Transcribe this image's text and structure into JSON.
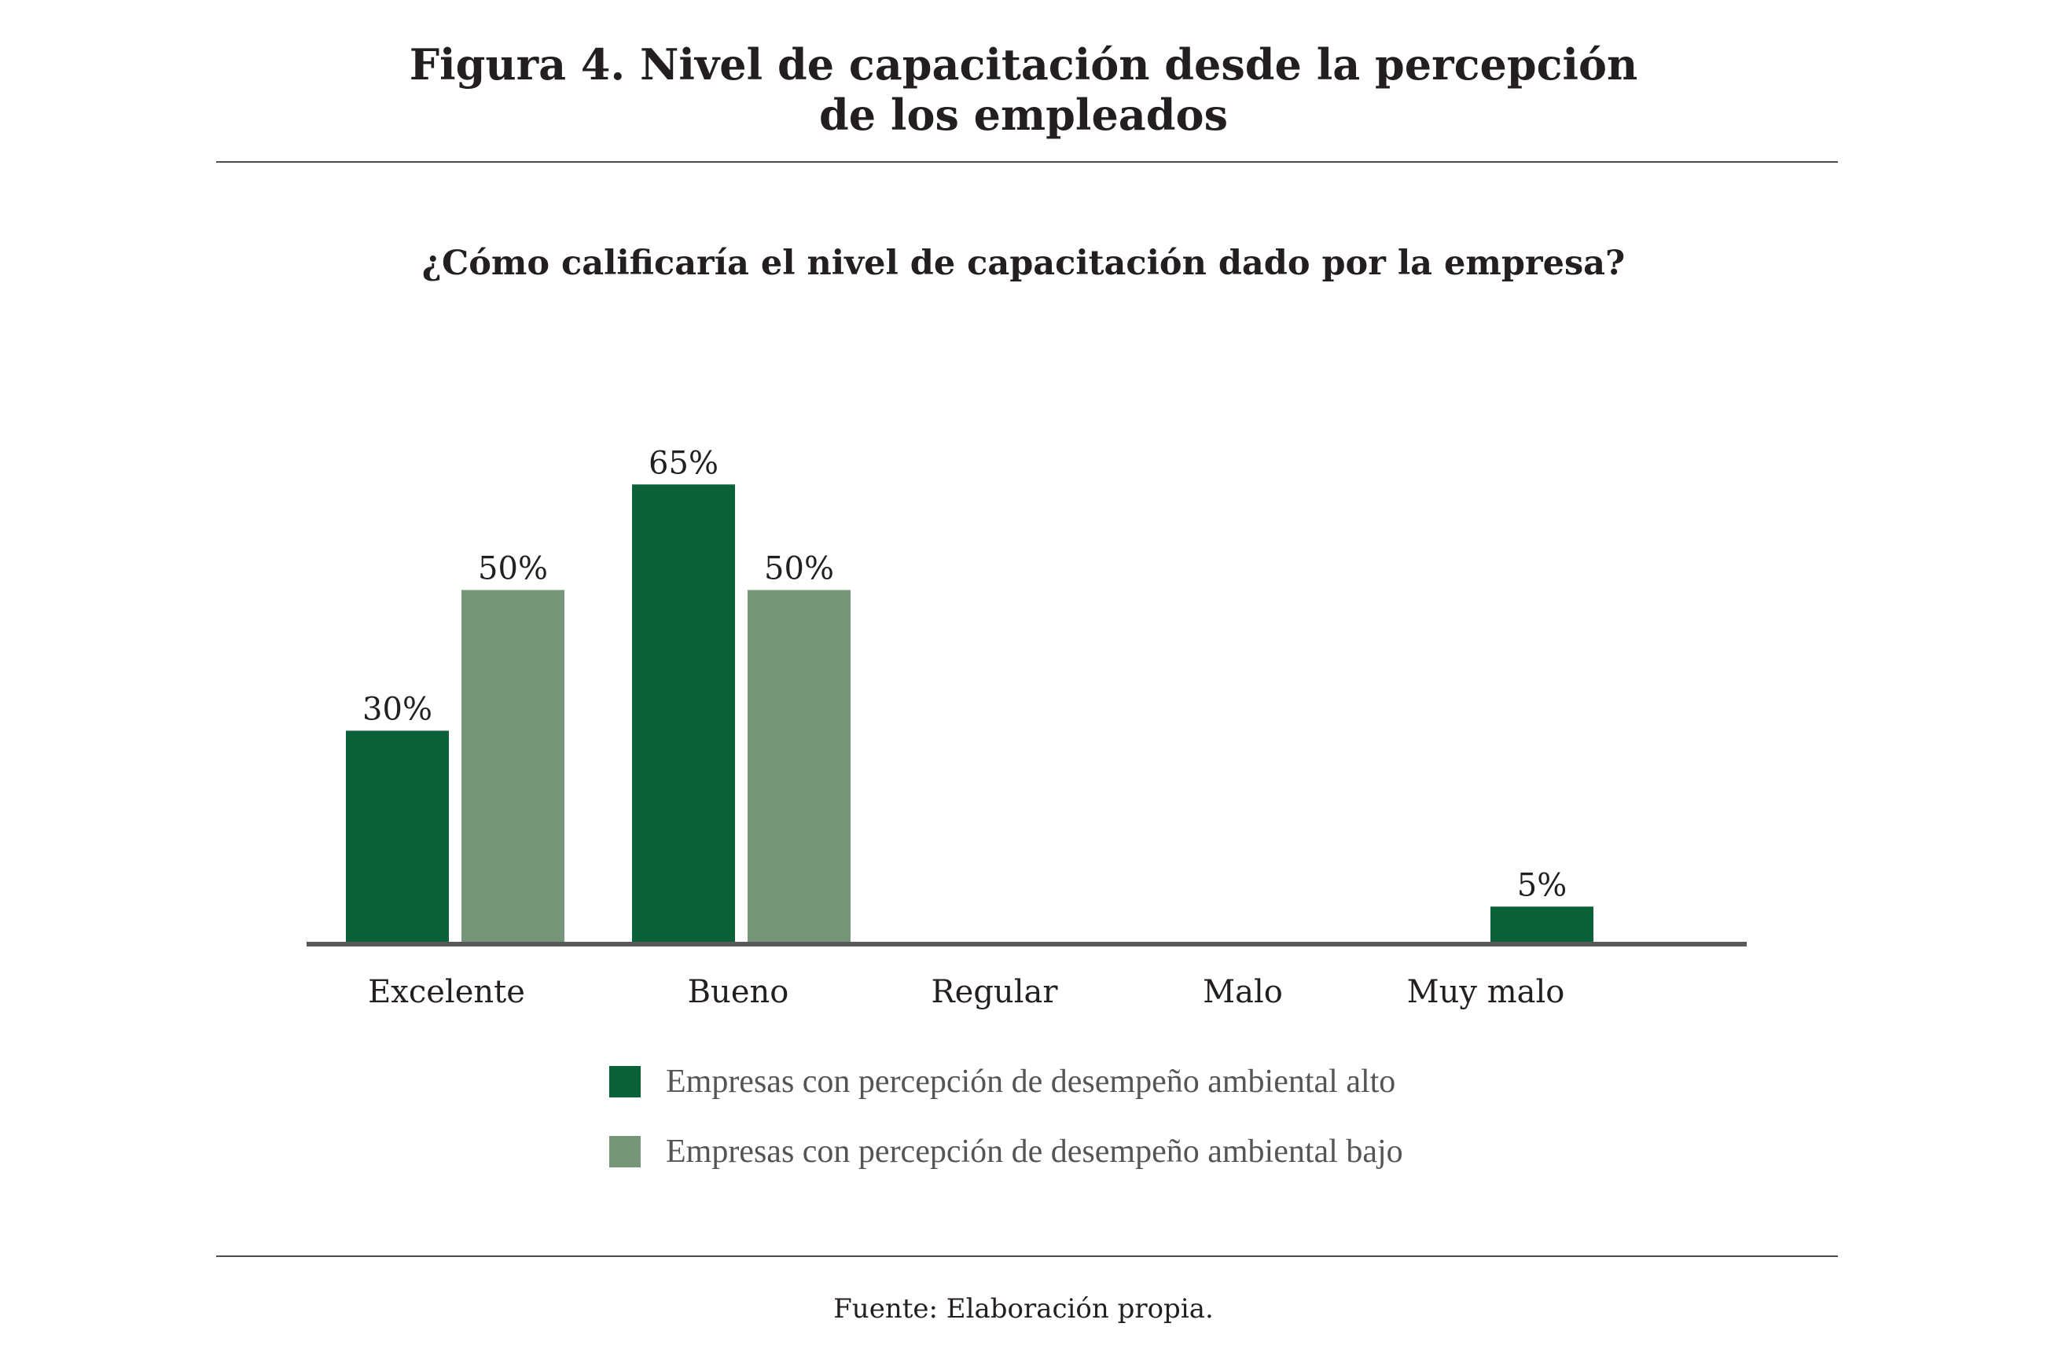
{
  "figure": {
    "title_line1": "Figura 4. Nivel de capacitación desde la percepción",
    "title_line2": "de los empleados",
    "source": "Fuente: Elaboración propia."
  },
  "chart_data": {
    "type": "bar",
    "title": "¿Cómo calificaría el nivel de capacitación dado por la empresa?",
    "xlabel": "",
    "ylabel": "",
    "categories": [
      "Excelente",
      "Bueno",
      "Regular",
      "Malo",
      "Muy malo"
    ],
    "series": [
      {
        "name": "Empresas con percepción de desempeño ambiental alto",
        "color": "#0b6138",
        "values": [
          30,
          65,
          0,
          0,
          5
        ],
        "labels": [
          "30%",
          "65%",
          "",
          "",
          "5%"
        ]
      },
      {
        "name": "Empresas con percepción de desempeño ambiental bajo",
        "color": "#769679",
        "values": [
          50,
          50,
          0,
          0,
          0
        ],
        "labels": [
          "50%",
          "50%",
          "",
          "",
          ""
        ]
      }
    ],
    "ylim": [
      0,
      70
    ],
    "grid": false,
    "legend_position": "bottom"
  }
}
